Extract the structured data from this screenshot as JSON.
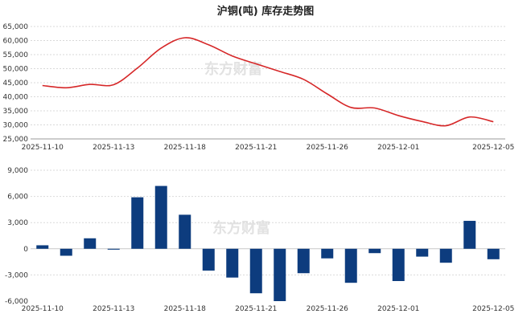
{
  "chart_data": [
    {
      "type": "line",
      "title": "沪铜(吨) 库存走势图",
      "xlabel": "",
      "ylabel": "",
      "ylim": [
        25000,
        65000
      ],
      "y_ticks": [
        "25,000",
        "30,000",
        "35,000",
        "40,000",
        "45,000",
        "50,000",
        "55,000",
        "60,000",
        "65,000"
      ],
      "x_ticks": [
        "2025-11-10",
        "2025-11-13",
        "2025-11-18",
        "2025-11-21",
        "2025-11-26",
        "2025-12-01",
        "2025-12-05"
      ],
      "grid": true,
      "color": "#d62728",
      "series": [
        {
          "x": [
            "2025-11-10",
            "2025-11-11",
            "2025-11-12",
            "2025-11-13",
            "2025-11-14",
            "2025-11-17",
            "2025-11-18",
            "2025-11-19",
            "2025-11-20",
            "2025-11-21",
            "2025-11-24",
            "2025-11-25",
            "2025-11-26",
            "2025-11-27",
            "2025-11-28",
            "2025-12-01",
            "2025-12-02",
            "2025-12-03",
            "2025-12-04",
            "2025-12-05"
          ],
          "values": [
            44000,
            43200,
            44400,
            44300,
            50200,
            57300,
            61000,
            58500,
            54500,
            51700,
            49000,
            46200,
            41000,
            36200,
            36000,
            33300,
            31200,
            29700,
            32800,
            31100
          ]
        }
      ]
    },
    {
      "type": "bar",
      "title": "",
      "xlabel": "",
      "ylabel": "",
      "ylim": [
        -6000,
        9000
      ],
      "y_ticks": [
        "-6,000",
        "-3,000",
        "0",
        "3,000",
        "6,000",
        "9,000"
      ],
      "x_ticks": [
        "2025-11-10",
        "2025-11-13",
        "2025-11-18",
        "2025-11-21",
        "2025-11-26",
        "2025-12-01",
        "2025-12-05"
      ],
      "grid": true,
      "color": "#0d3c7e",
      "values": [
        400,
        -800,
        1200,
        -100,
        5900,
        7200,
        3900,
        -2500,
        -3300,
        -5100,
        -6000,
        -2800,
        -1100,
        -3900,
        -500,
        -3700,
        -900,
        -1600,
        3200,
        -1200
      ]
    }
  ],
  "watermark": "东方财富"
}
